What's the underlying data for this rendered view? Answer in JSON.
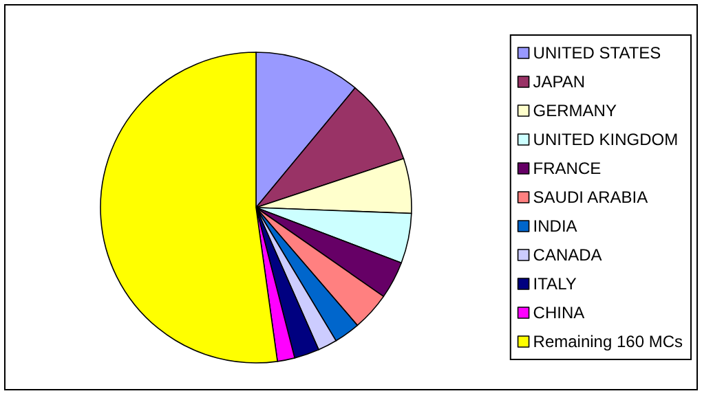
{
  "chart_data": {
    "type": "pie",
    "categories": [
      "UNITED STATES",
      "JAPAN",
      "GERMANY",
      "UNITED KINGDOM",
      "FRANCE",
      "SAUDI ARABIA",
      "INDIA",
      "CANADA",
      "ITALY",
      "CHINA",
      "Remaining 160 MCs"
    ],
    "values": [
      11.0,
      8.9,
      5.7,
      5.2,
      3.9,
      4.0,
      2.7,
      2.0,
      2.6,
      1.8,
      52.2
    ],
    "colors": [
      "#9999ff",
      "#993366",
      "#ffffcc",
      "#ccffff",
      "#660066",
      "#ff8080",
      "#0066cc",
      "#ccccff",
      "#000080",
      "#ff00ff",
      "#ffff00"
    ],
    "legend": "right"
  }
}
